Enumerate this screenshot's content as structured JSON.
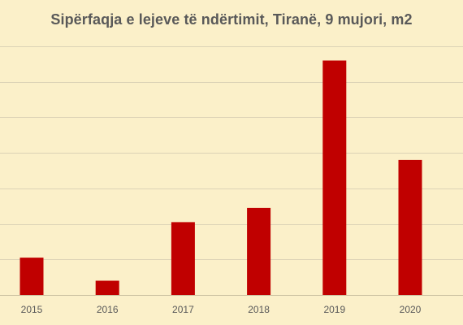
{
  "chart_data": {
    "type": "bar",
    "title": "Sipërfaqja e lejeve të ndërtimit, Tiranë, 9 mujori, m2",
    "categories": [
      "2015",
      "2016",
      "2017",
      "2018",
      "2019",
      "2020"
    ],
    "values": [
      105000,
      40000,
      205000,
      245000,
      660000,
      380000
    ],
    "xlabel": "",
    "ylabel": "",
    "ylim": [
      0,
      700000
    ],
    "grid": true,
    "legend": "none",
    "colors": {
      "bar": "#c00000",
      "gridline": "#dcd3b6",
      "axis": "#c8bf9f",
      "background": "#fbf0c9",
      "text": "#595959"
    }
  }
}
